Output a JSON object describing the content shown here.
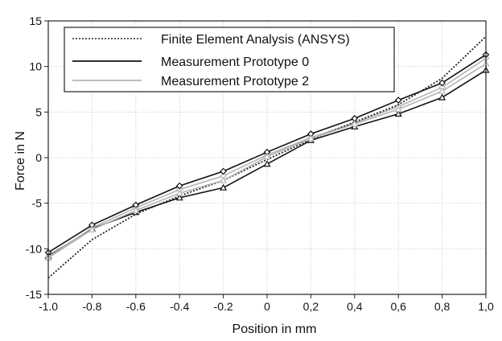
{
  "chart_data": {
    "type": "line",
    "xlabel": "Position in mm",
    "ylabel": "Force in N",
    "xlim": [
      -1.0,
      1.0
    ],
    "ylim": [
      -15,
      15
    ],
    "x_tick_values": [
      -1.0,
      -0.8,
      -0.6,
      -0.4,
      -0.2,
      0,
      0.2,
      0.4,
      0.6,
      0.8,
      1.0
    ],
    "x_tick_labels": [
      "-1.0",
      "-0.8",
      "-0.6",
      "-0.4",
      "-0.2",
      "0",
      "0,2",
      "0,4",
      "0,6",
      "0,8",
      "1,0"
    ],
    "y_tick_values": [
      -15,
      -10,
      -5,
      0,
      5,
      10,
      15
    ],
    "y_tick_labels": [
      "-15",
      "-10",
      "-5",
      "0",
      "5",
      "10",
      "15"
    ],
    "grid": true,
    "legend_position": "top",
    "x": [
      -1.0,
      -0.8,
      -0.6,
      -0.4,
      -0.2,
      0.0,
      0.2,
      0.4,
      0.6,
      0.8,
      1.0
    ],
    "series": [
      {
        "name": "Finite Element Analysis (ANSYS)",
        "style": "dotted",
        "color": "#222222",
        "values": [
          -13.2,
          -9.0,
          -6.2,
          -4.2,
          -2.5,
          -0.2,
          2.0,
          3.9,
          5.8,
          8.7,
          13.3
        ]
      },
      {
        "name": "Measurement Prototype 0",
        "style": "solid",
        "color": "#111111",
        "marker": "diamond",
        "values": [
          -10.4,
          -7.4,
          -5.2,
          -3.1,
          -1.5,
          0.6,
          2.6,
          4.3,
          6.3,
          8.2,
          11.3
        ]
      },
      {
        "name": "Measurement Prototype 2",
        "style": "solid",
        "color": "#b4b4b4",
        "marker": "triangle",
        "values": [
          -11.0,
          -7.9,
          -5.8,
          -3.9,
          -2.5,
          0.1,
          2.1,
          3.7,
          5.3,
          7.3,
          10.3
        ]
      }
    ],
    "extra_series": [
      {
        "style": "solid",
        "color": "#111111",
        "marker": "triangle",
        "values": [
          -10.8,
          -7.8,
          -6.0,
          -4.4,
          -3.3,
          -0.7,
          1.9,
          3.4,
          4.8,
          6.6,
          9.6
        ]
      },
      {
        "style": "solid",
        "color": "#b4b4b4",
        "marker": "diamond",
        "values": [
          -10.9,
          -7.7,
          -5.5,
          -3.5,
          -2.0,
          0.3,
          2.2,
          3.8,
          5.6,
          7.7,
          10.9
        ]
      }
    ]
  }
}
